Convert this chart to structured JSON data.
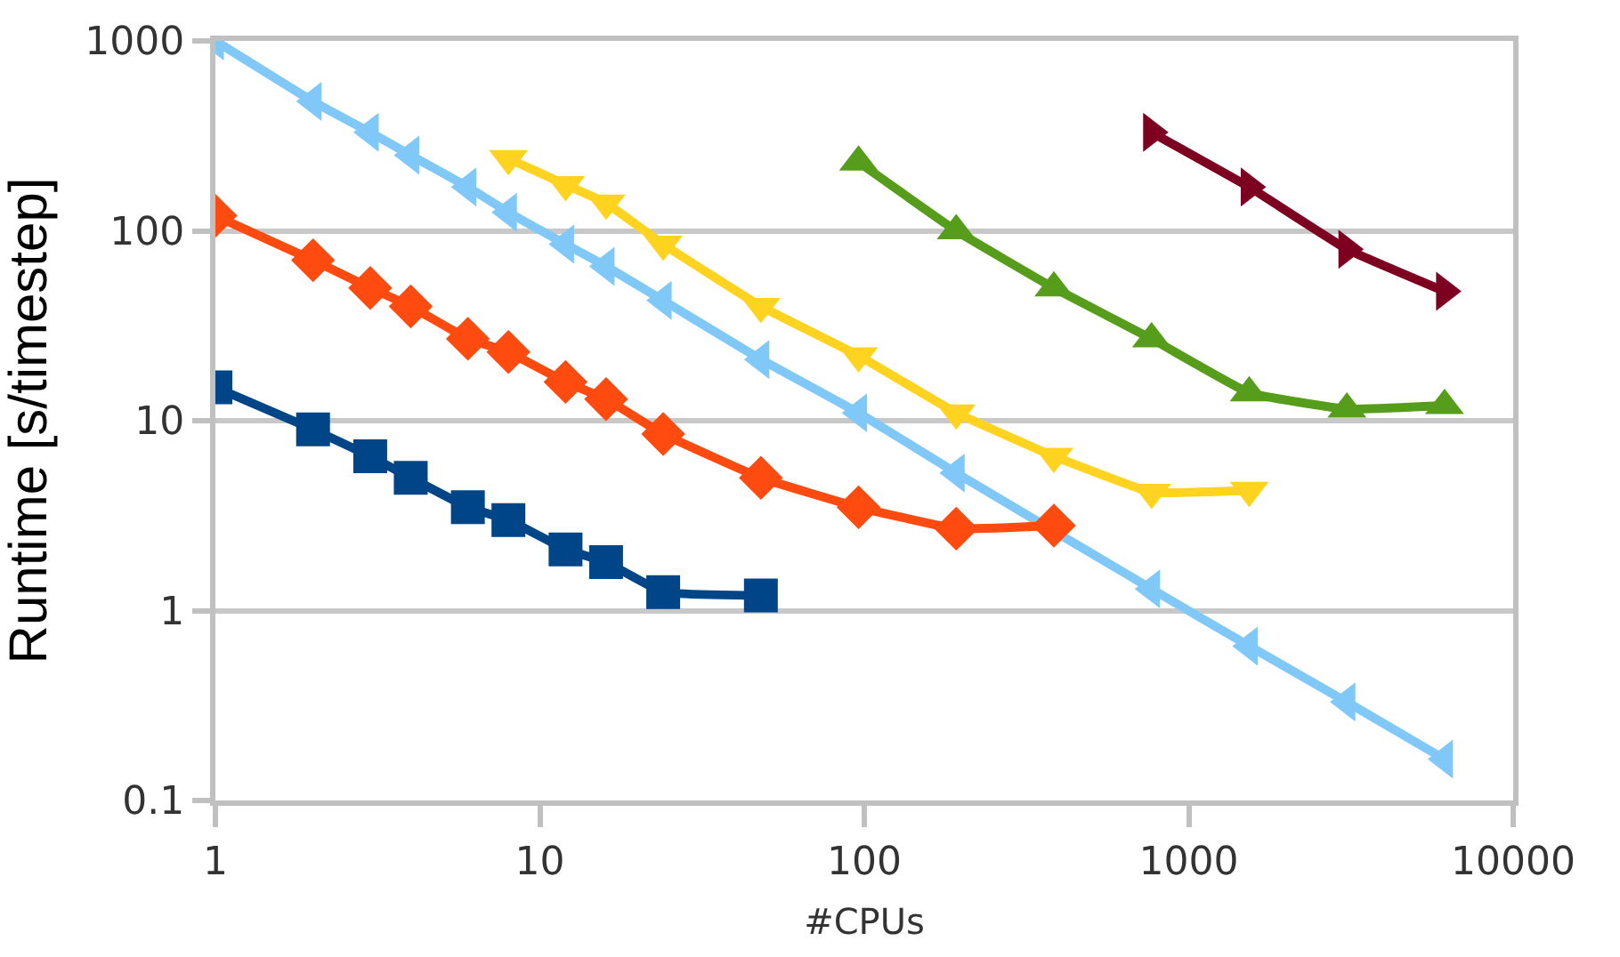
{
  "chart_data": {
    "type": "line",
    "xlabel": "#CPUs",
    "ylabel": "Runtime [s/timestep]",
    "log": "xy",
    "grid": "y",
    "xlim": [
      1,
      10000
    ],
    "xticks": [
      1,
      10,
      100,
      1000,
      10000
    ],
    "ylim": [
      0.1,
      1000
    ],
    "yticks": [
      0.1,
      1,
      10,
      100,
      1000
    ],
    "series": [
      {
        "color": "#80c8f8",
        "marker": "triangle-left",
        "x": [
          1,
          2,
          3,
          4,
          6,
          8,
          12,
          16,
          24,
          48,
          96,
          192,
          768,
          1536,
          3072,
          6144
        ],
        "values": [
          1000,
          480,
          330,
          250,
          170,
          125,
          85,
          65,
          43,
          21,
          11,
          5.3,
          1.3,
          0.65,
          0.33,
          0.165
        ]
      },
      {
        "color": "#ff4a10",
        "marker": "diamond",
        "x": [
          1,
          2,
          3,
          4,
          6,
          8,
          12,
          16,
          24,
          48,
          96,
          192,
          384
        ],
        "values": [
          120,
          70,
          50,
          40,
          27,
          23,
          16,
          13,
          8.5,
          5,
          3.5,
          2.7,
          2.8
        ]
      },
      {
        "color": "#004587",
        "marker": "square",
        "x": [
          1,
          2,
          3,
          4,
          6,
          8,
          12,
          16,
          24,
          48
        ],
        "values": [
          15,
          9,
          6.5,
          5,
          3.5,
          3,
          2.1,
          1.8,
          1.25,
          1.2
        ]
      },
      {
        "color": "#ffd320",
        "marker": "triangle-down",
        "x": [
          8,
          12,
          16,
          24,
          48,
          96,
          192,
          384,
          768,
          1536
        ],
        "values": [
          240,
          175,
          140,
          85,
          40,
          22,
          11,
          6.5,
          4.2,
          4.3
        ]
      },
      {
        "color": "#579d1c",
        "marker": "triangle-up",
        "x": [
          96,
          192,
          384,
          768,
          1536,
          3072,
          6144
        ],
        "values": [
          230,
          100,
          50,
          27,
          14,
          11.5,
          12
        ]
      },
      {
        "color": "#7e0021",
        "marker": "triangle-right",
        "x": [
          768,
          1536,
          3072,
          6144
        ],
        "values": [
          330,
          170,
          80,
          48
        ]
      }
    ]
  }
}
